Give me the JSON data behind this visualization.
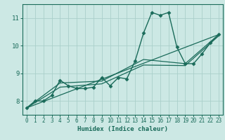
{
  "xlabel": "Humidex (Indice chaleur)",
  "ylabel": "",
  "xlim": [
    -0.5,
    23.5
  ],
  "ylim": [
    7.5,
    11.5
  ],
  "xticks": [
    0,
    1,
    2,
    3,
    4,
    5,
    6,
    7,
    8,
    9,
    10,
    11,
    12,
    13,
    14,
    15,
    16,
    17,
    18,
    19,
    20,
    21,
    22,
    23
  ],
  "yticks": [
    8,
    9,
    10,
    11
  ],
  "bg_color": "#cce8e4",
  "line_color": "#1a6b5a",
  "grid_color": "#aacfca",
  "lines": [
    {
      "x": [
        0,
        1,
        2,
        3,
        4,
        5,
        6,
        7,
        8,
        9,
        10,
        11,
        12,
        13,
        14,
        15,
        16,
        17,
        18,
        19,
        20,
        21,
        22,
        23
      ],
      "y": [
        7.75,
        8.0,
        8.0,
        8.2,
        8.75,
        8.55,
        8.45,
        8.45,
        8.5,
        8.85,
        8.55,
        8.85,
        8.8,
        9.45,
        10.45,
        11.2,
        11.1,
        11.2,
        9.95,
        9.35,
        9.35,
        9.7,
        10.1,
        10.4
      ],
      "marker": "D",
      "markersize": 2.5,
      "linewidth": 1.0
    },
    {
      "x": [
        0,
        23
      ],
      "y": [
        7.75,
        10.4
      ],
      "marker": null,
      "linewidth": 0.9
    },
    {
      "x": [
        0,
        4,
        9,
        14,
        19,
        23
      ],
      "y": [
        7.75,
        8.65,
        8.72,
        9.5,
        9.35,
        10.4
      ],
      "marker": null,
      "linewidth": 0.9
    },
    {
      "x": [
        0,
        4,
        9,
        14,
        19,
        23
      ],
      "y": [
        7.75,
        8.5,
        8.62,
        9.3,
        9.28,
        10.35
      ],
      "marker": null,
      "linewidth": 0.9
    }
  ],
  "tick_labelsize": 5.5,
  "xlabel_fontsize": 6.5
}
